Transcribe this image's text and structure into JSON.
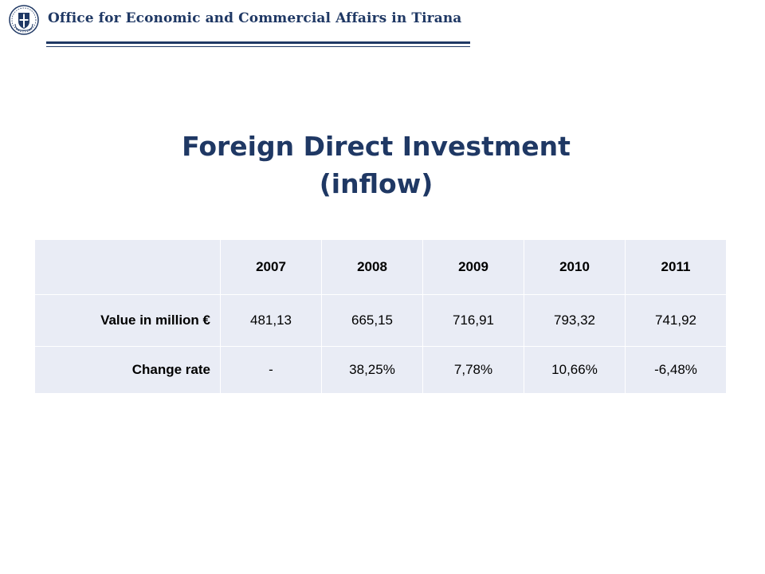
{
  "header": {
    "title": "Office for Economic and Commercial Affairs in Tirana",
    "emblem_icon": "greek-coat-of-arms-icon"
  },
  "colors": {
    "brand": "#1f3864",
    "table_cell": "#e9ecf5"
  },
  "main": {
    "title_line1": "Foreign Direct Investment",
    "title_line2": "(inflow)"
  },
  "table": {
    "header": [
      "",
      "2007",
      "2008",
      "2009",
      "2010",
      "2011"
    ],
    "rows": [
      {
        "label": "Value in million €",
        "values": [
          "481,13",
          "665,15",
          "716,91",
          "793,32",
          "741,92"
        ]
      },
      {
        "label": "Change rate",
        "values": [
          "-",
          "38,25%",
          "7,78%",
          "10,66%",
          "-6,48%"
        ]
      }
    ]
  }
}
